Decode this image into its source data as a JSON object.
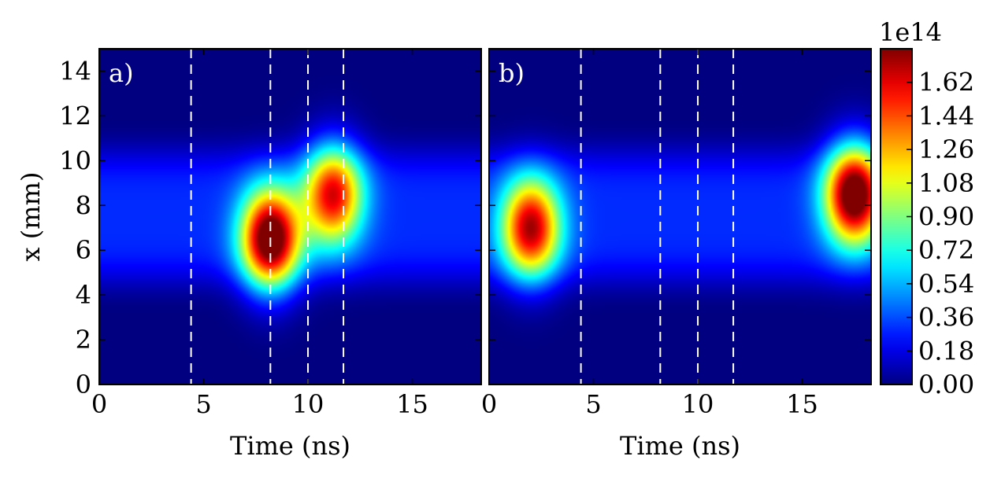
{
  "chart_data": [
    {
      "type": "heatmap",
      "panel_label": "a)",
      "xlabel": "Time (ns)",
      "ylabel": "x (mm)",
      "xlim": [
        0,
        18.3
      ],
      "ylim": [
        0,
        15
      ],
      "xticks": [
        "0",
        "5",
        "10",
        "15"
      ],
      "yticks": [
        "0",
        "2",
        "4",
        "6",
        "8",
        "10",
        "12",
        "14"
      ],
      "dashed_lines_at_time": [
        4.4,
        8.2,
        10.0,
        11.7
      ],
      "hotspots": [
        {
          "t": 8.2,
          "x": 6.5,
          "peak": 175000000000000.0
        },
        {
          "t": 11.2,
          "x": 8.5,
          "peak": 135000000000000.0
        }
      ],
      "background_band": {
        "x_center": 7.5,
        "x_halfwidth": 3.0,
        "value": 30000000000000.0
      }
    },
    {
      "type": "heatmap",
      "panel_label": "b)",
      "xlabel": "Time (ns)",
      "ylabel": "",
      "xlim": [
        0,
        18.3
      ],
      "ylim": [
        0,
        15
      ],
      "xticks": [
        "0",
        "5",
        "10",
        "15"
      ],
      "yticks": [],
      "dashed_lines_at_time": [
        4.4,
        8.2,
        10.0,
        11.7
      ],
      "hotspots": [
        {
          "t": 2.0,
          "x": 7.0,
          "peak": 145000000000000.0
        },
        {
          "t": 17.5,
          "x": 8.5,
          "peak": 175000000000000.0
        }
      ],
      "background_band": {
        "x_center": 7.5,
        "x_halfwidth": 3.0,
        "value": 30000000000000.0
      }
    }
  ],
  "colorbar": {
    "exponent_label": "1e14",
    "min": 0.0,
    "max": 1.8,
    "ticks": [
      "0.00",
      "0.18",
      "0.36",
      "0.54",
      "0.72",
      "0.90",
      "1.08",
      "1.26",
      "1.44",
      "1.62"
    ]
  }
}
